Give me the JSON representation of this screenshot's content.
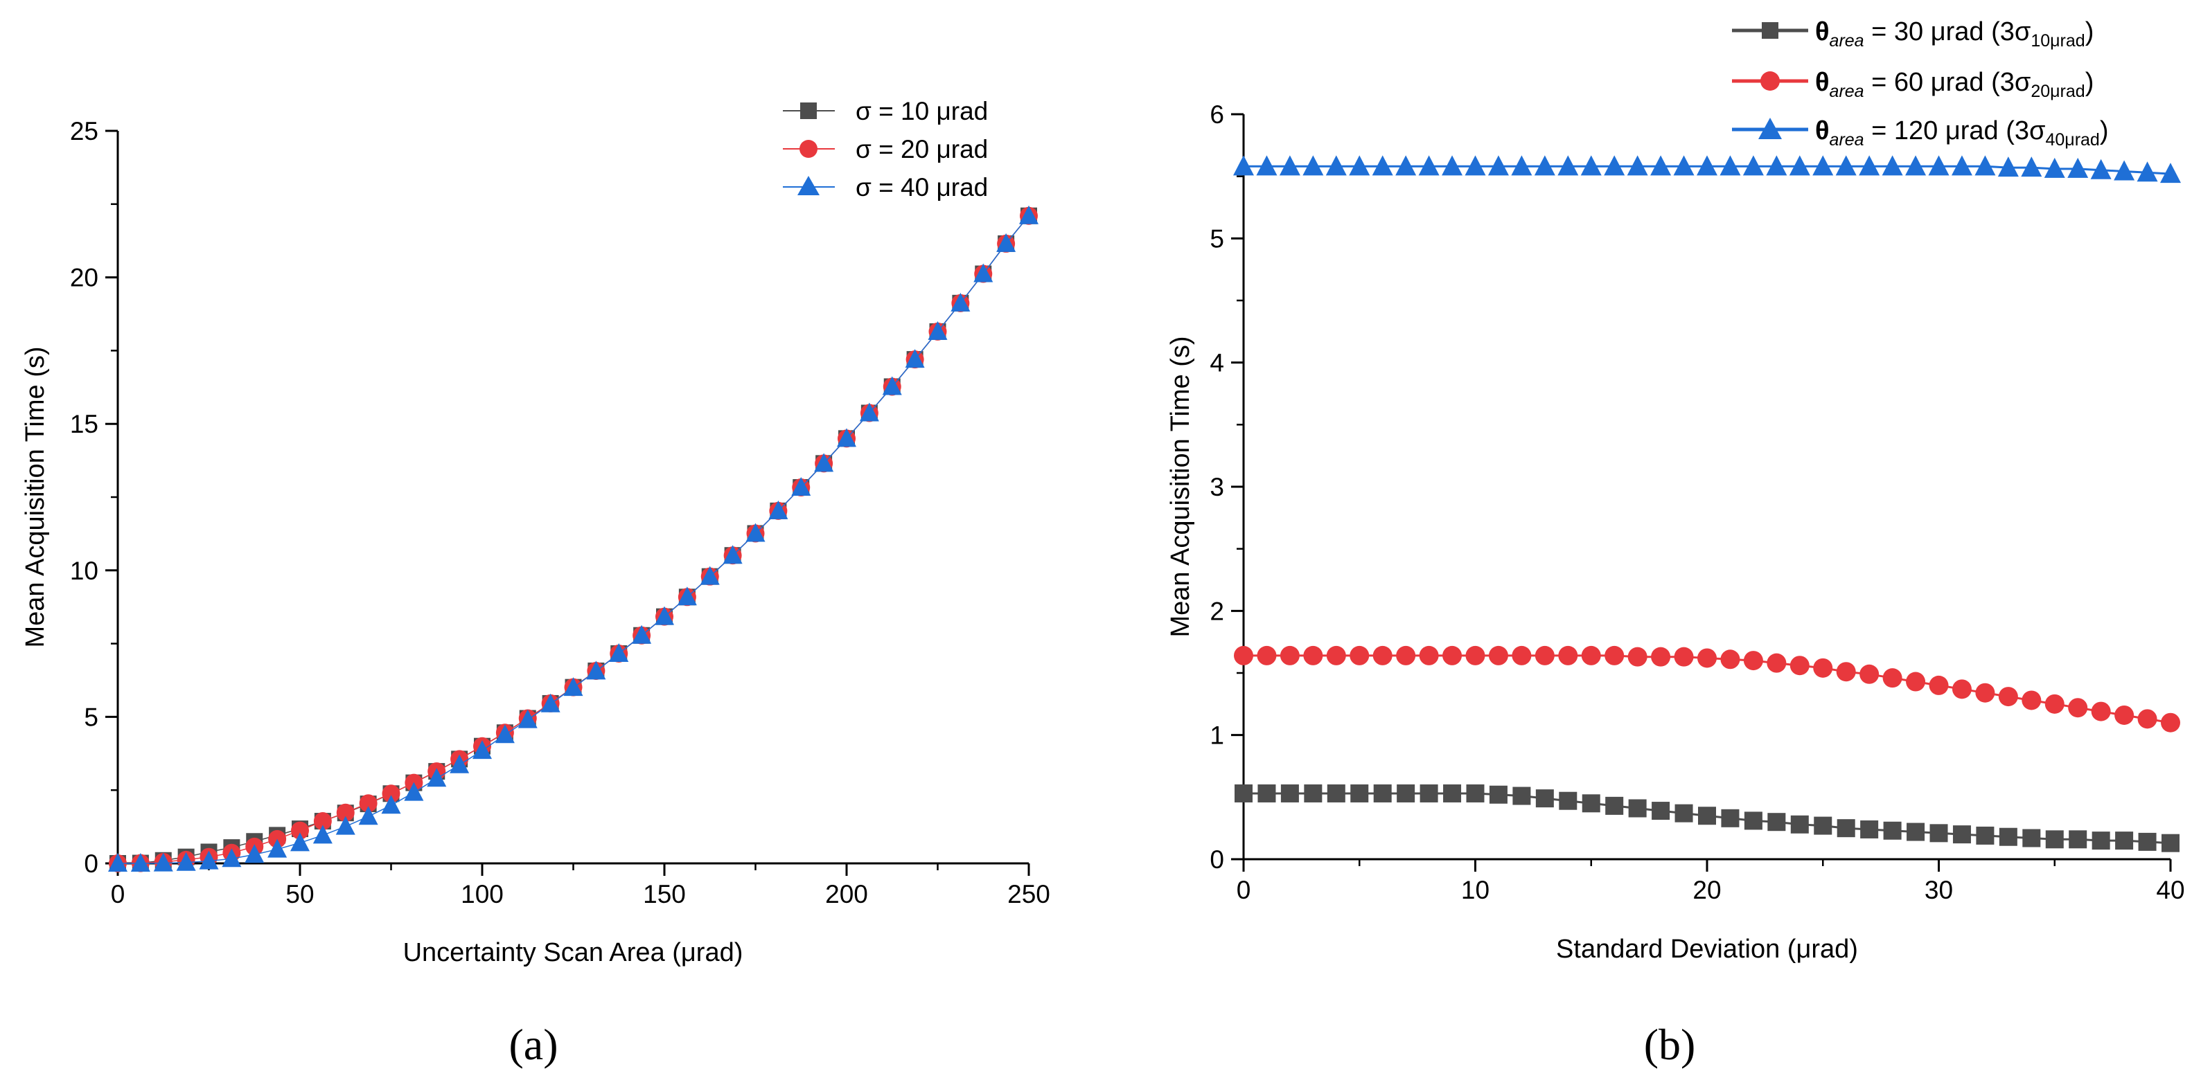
{
  "colors": {
    "gray": "#4d4d4d",
    "red": "#e8383d",
    "blue": "#1f6fd6"
  },
  "chart_data": [
    {
      "id": "a",
      "panel_label": "(a)",
      "type": "line",
      "xlabel": "Uncertainty Scan Area (μrad)",
      "ylabel": "Mean Acquisition Time (s)",
      "xlim": [
        0,
        250
      ],
      "ylim": [
        0,
        25
      ],
      "xticks": [
        0,
        50,
        100,
        150,
        200,
        250
      ],
      "yticks": [
        0,
        5,
        10,
        15,
        20,
        25
      ],
      "legend_position": "top-right",
      "series": [
        {
          "name": "σ = 10 μrad",
          "label_main": "σ = 10 μrad",
          "marker": "square",
          "color": "#4d4d4d",
          "x": [
            0,
            6.25,
            12.5,
            18.75,
            25,
            31.25,
            37.5,
            43.75,
            50,
            56.25,
            62.5,
            68.75,
            75,
            81.25,
            87.5,
            93.75,
            100,
            106.25,
            112.5,
            118.75,
            125,
            131.25,
            137.5,
            143.75,
            150,
            156.25,
            162.5,
            168.75,
            175,
            181.25,
            187.5,
            193.75,
            200,
            206.25,
            212.5,
            218.75,
            225,
            231.25,
            237.5,
            243.75,
            250
          ],
          "y": [
            0,
            0.01,
            0.1,
            0.22,
            0.39,
            0.54,
            0.75,
            0.96,
            1.18,
            1.44,
            1.72,
            2.03,
            2.38,
            2.75,
            3.14,
            3.56,
            4.0,
            4.46,
            4.95,
            5.46,
            6.01,
            6.57,
            7.16,
            7.78,
            8.42,
            9.09,
            9.79,
            10.51,
            11.26,
            12.03,
            12.83,
            13.65,
            14.5,
            15.37,
            16.27,
            17.2,
            18.15,
            19.12,
            20.12,
            21.15,
            22.1
          ]
        },
        {
          "name": "σ = 20 μrad",
          "label_main": "σ = 20 μrad",
          "marker": "circle",
          "color": "#e8383d",
          "x": [
            0,
            6.25,
            12.5,
            18.75,
            25,
            31.25,
            37.5,
            43.75,
            50,
            56.25,
            62.5,
            68.75,
            75,
            81.25,
            87.5,
            93.75,
            100,
            106.25,
            112.5,
            118.75,
            125,
            131.25,
            137.5,
            143.75,
            150,
            156.25,
            162.5,
            168.75,
            175,
            181.25,
            187.5,
            193.75,
            200,
            206.25,
            212.5,
            218.75,
            225,
            231.25,
            237.5,
            243.75,
            250
          ],
          "y": [
            0,
            0.01,
            0.05,
            0.12,
            0.22,
            0.36,
            0.57,
            0.83,
            1.12,
            1.44,
            1.73,
            2.05,
            2.38,
            2.75,
            3.14,
            3.56,
            4.0,
            4.46,
            4.95,
            5.46,
            6.01,
            6.57,
            7.16,
            7.78,
            8.42,
            9.09,
            9.79,
            10.51,
            11.26,
            12.03,
            12.83,
            13.65,
            14.5,
            15.37,
            16.27,
            17.2,
            18.15,
            19.12,
            20.12,
            21.15,
            22.1
          ]
        },
        {
          "name": "σ = 40 μrad",
          "label_main": "σ = 40 μrad",
          "marker": "triangle",
          "color": "#1f6fd6",
          "x": [
            0,
            6.25,
            12.5,
            18.75,
            25,
            31.25,
            37.5,
            43.75,
            50,
            56.25,
            62.5,
            68.75,
            75,
            81.25,
            87.5,
            93.75,
            100,
            106.25,
            112.5,
            118.75,
            125,
            131.25,
            137.5,
            143.75,
            150,
            156.25,
            162.5,
            168.75,
            175,
            181.25,
            187.5,
            193.75,
            200,
            206.25,
            212.5,
            218.75,
            225,
            231.25,
            237.5,
            243.75,
            250
          ],
          "y": [
            0,
            0,
            0.01,
            0.03,
            0.08,
            0.16,
            0.3,
            0.48,
            0.7,
            0.96,
            1.26,
            1.6,
            1.98,
            2.42,
            2.9,
            3.36,
            3.85,
            4.39,
            4.9,
            5.44,
            6.0,
            6.56,
            7.16,
            7.78,
            8.42,
            9.09,
            9.79,
            10.51,
            11.26,
            12.03,
            12.83,
            13.65,
            14.5,
            15.37,
            16.27,
            17.2,
            18.15,
            19.12,
            20.12,
            21.15,
            22.1
          ]
        }
      ]
    },
    {
      "id": "b",
      "panel_label": "(b)",
      "type": "line",
      "xlabel": "Standard Deviation (μrad)",
      "ylabel": "Mean Acquisition Time (s)",
      "xlim": [
        0,
        40
      ],
      "ylim": [
        0,
        6
      ],
      "xticks": [
        0,
        10,
        20,
        30,
        40
      ],
      "yticks": [
        0,
        1,
        2,
        3,
        4,
        5,
        6
      ],
      "legend_position": "top-right",
      "series": [
        {
          "name": "θarea = 30 μrad (3σ10μrad)",
          "label_theta": "θ",
          "label_sub": "area",
          "label_main": " = 30 μrad (3σ",
          "label_sub2": "10μrad",
          "label_end": ")",
          "marker": "square",
          "color": "#4d4d4d",
          "x": [
            0,
            1,
            2,
            3,
            4,
            5,
            6,
            7,
            8,
            9,
            10,
            11,
            12,
            13,
            14,
            15,
            16,
            17,
            18,
            19,
            20,
            21,
            22,
            23,
            24,
            25,
            26,
            27,
            28,
            29,
            30,
            31,
            32,
            33,
            34,
            35,
            36,
            37,
            38,
            39,
            40
          ],
          "y": [
            0.53,
            0.53,
            0.53,
            0.53,
            0.53,
            0.53,
            0.53,
            0.53,
            0.53,
            0.53,
            0.53,
            0.52,
            0.51,
            0.49,
            0.47,
            0.45,
            0.43,
            0.41,
            0.39,
            0.37,
            0.35,
            0.33,
            0.31,
            0.3,
            0.28,
            0.27,
            0.25,
            0.24,
            0.23,
            0.22,
            0.21,
            0.2,
            0.19,
            0.18,
            0.17,
            0.16,
            0.16,
            0.15,
            0.15,
            0.14,
            0.13
          ]
        },
        {
          "name": "θarea = 60 μrad (3σ20μrad)",
          "label_theta": "θ",
          "label_sub": "area",
          "label_main": " = 60 μrad (3σ",
          "label_sub2": "20μrad",
          "label_end": ")",
          "marker": "circle",
          "color": "#e8383d",
          "x": [
            0,
            1,
            2,
            3,
            4,
            5,
            6,
            7,
            8,
            9,
            10,
            11,
            12,
            13,
            14,
            15,
            16,
            17,
            18,
            19,
            20,
            21,
            22,
            23,
            24,
            25,
            26,
            27,
            28,
            29,
            30,
            31,
            32,
            33,
            34,
            35,
            36,
            37,
            38,
            39,
            40
          ],
          "y": [
            1.64,
            1.64,
            1.64,
            1.64,
            1.64,
            1.64,
            1.64,
            1.64,
            1.64,
            1.64,
            1.64,
            1.64,
            1.64,
            1.64,
            1.64,
            1.64,
            1.64,
            1.63,
            1.63,
            1.63,
            1.62,
            1.61,
            1.6,
            1.58,
            1.56,
            1.54,
            1.51,
            1.49,
            1.46,
            1.43,
            1.4,
            1.37,
            1.34,
            1.31,
            1.28,
            1.25,
            1.22,
            1.19,
            1.16,
            1.13,
            1.1
          ]
        },
        {
          "name": "θarea = 120 μrad (3σ40μrad)",
          "label_theta": "θ",
          "label_sub": "area",
          "label_main": " = 120 μrad (3σ",
          "label_sub2": "40μrad",
          "label_end": ")",
          "marker": "triangle",
          "color": "#1f6fd6",
          "x": [
            0,
            1,
            2,
            3,
            4,
            5,
            6,
            7,
            8,
            9,
            10,
            11,
            12,
            13,
            14,
            15,
            16,
            17,
            18,
            19,
            20,
            21,
            22,
            23,
            24,
            25,
            26,
            27,
            28,
            29,
            30,
            31,
            32,
            33,
            34,
            35,
            36,
            37,
            38,
            39,
            40
          ],
          "y": [
            5.58,
            5.58,
            5.58,
            5.58,
            5.58,
            5.58,
            5.58,
            5.58,
            5.58,
            5.58,
            5.58,
            5.58,
            5.58,
            5.58,
            5.58,
            5.58,
            5.58,
            5.58,
            5.58,
            5.58,
            5.58,
            5.58,
            5.58,
            5.58,
            5.58,
            5.58,
            5.58,
            5.58,
            5.58,
            5.58,
            5.58,
            5.58,
            5.58,
            5.57,
            5.57,
            5.56,
            5.56,
            5.55,
            5.54,
            5.53,
            5.52
          ]
        }
      ]
    }
  ]
}
